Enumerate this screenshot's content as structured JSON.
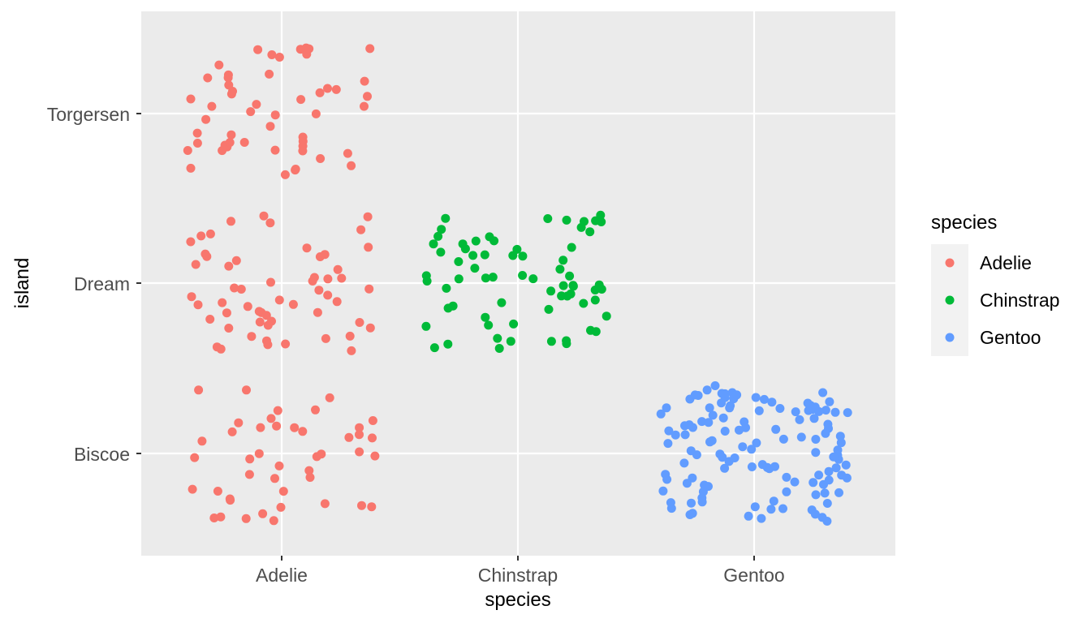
{
  "chart_data": {
    "type": "scatter",
    "geom": "jitter",
    "xlabel": "species",
    "ylabel": "island",
    "x_categories": [
      "Adelie",
      "Chinstrap",
      "Gentoo"
    ],
    "y_categories": [
      "Biscoe",
      "Dream",
      "Torgersen"
    ],
    "grid": true,
    "legend": {
      "title": "species",
      "placement": "right",
      "entries": [
        {
          "label": "Adelie",
          "color": "#F8766D"
        },
        {
          "label": "Chinstrap",
          "color": "#00BA38"
        },
        {
          "label": "Gentoo",
          "color": "#619CFF"
        }
      ]
    },
    "colors": {
      "panel": "#EBEBEB",
      "grid": "#FFFFFF",
      "tick_text": "#4D4D4D",
      "tick_mark": "#333333",
      "legend_key": "#F2F2F2"
    },
    "groups": [
      {
        "species": "Adelie",
        "island": "Torgersen",
        "count": 52
      },
      {
        "species": "Adelie",
        "island": "Dream",
        "count": 56
      },
      {
        "species": "Adelie",
        "island": "Biscoe",
        "count": 44
      },
      {
        "species": "Chinstrap",
        "island": "Dream",
        "count": 68
      },
      {
        "species": "Gentoo",
        "island": "Biscoe",
        "count": 124
      }
    ]
  }
}
